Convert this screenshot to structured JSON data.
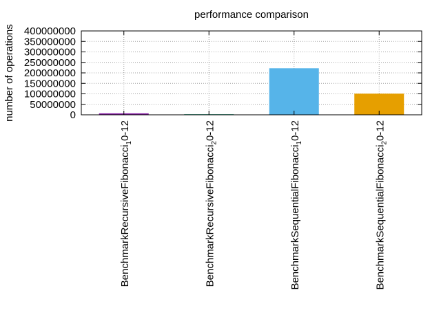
{
  "chart_data": {
    "type": "bar",
    "title": "performance comparison",
    "xlabel": "",
    "ylabel": "number of operations",
    "ylim": [
      0,
      400000000
    ],
    "yticks": [
      0,
      50000000,
      100000000,
      150000000,
      200000000,
      250000000,
      300000000,
      350000000,
      400000000
    ],
    "grid": true,
    "legend": "none",
    "categories": [
      {
        "base": "BenchmarkRecursiveFibonacci",
        "sub": "1",
        "suffix": "0-12",
        "value": 7000000,
        "color": "#8b1fa9"
      },
      {
        "base": "BenchmarkRecursiveFibonacci",
        "sub": "2",
        "suffix": "0-12",
        "value": 300000,
        "color": "#009e73"
      },
      {
        "base": "BenchmarkSequentialFibonacci",
        "sub": "1",
        "suffix": "0-12",
        "value": 222000000,
        "color": "#56b4e9"
      },
      {
        "base": "BenchmarkSequentialFibonacci",
        "sub": "2",
        "suffix": "0-12",
        "value": 101000000,
        "color": "#e69f00"
      }
    ]
  }
}
